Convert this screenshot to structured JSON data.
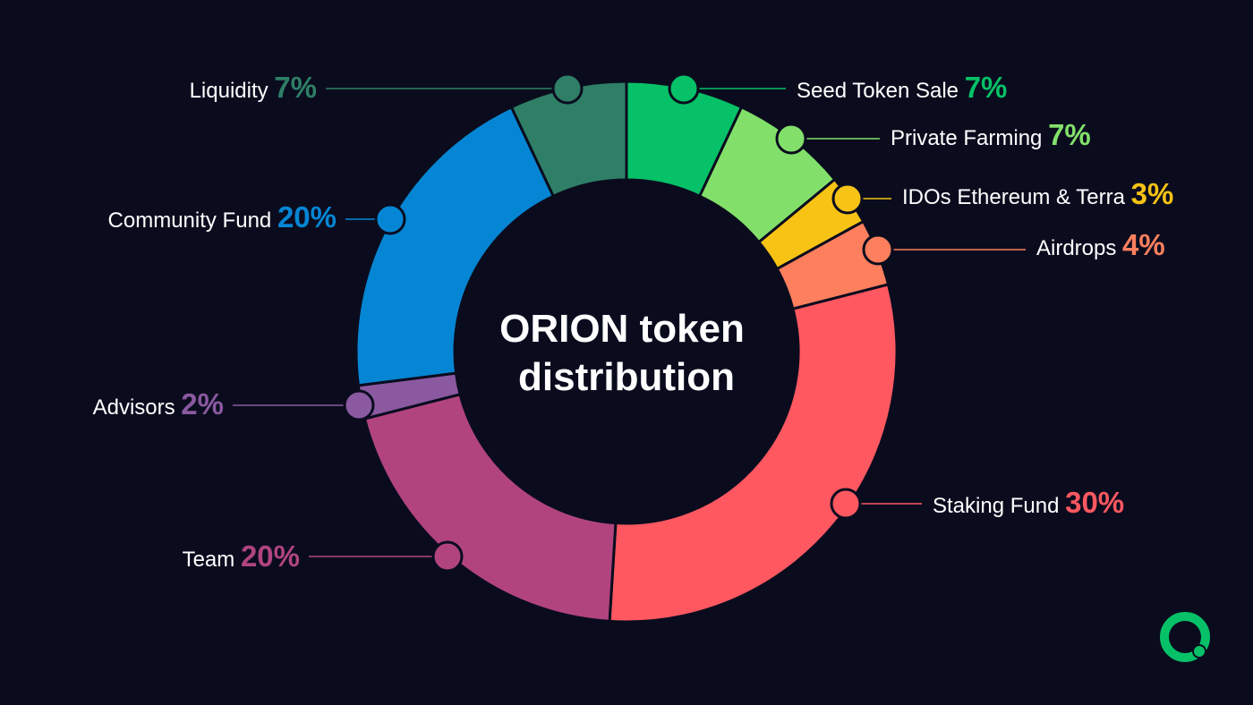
{
  "chart_data": {
    "type": "pie",
    "title": "ORION token distribution",
    "title_lines": [
      "ORION token",
      "distribution"
    ],
    "categories": [
      "Seed Token Sale",
      "Private Farming",
      "IDOs Ethereum & Terra",
      "Airdrops",
      "Staking Fund",
      "Team",
      "Advisors",
      "Community Fund",
      "Liquidity"
    ],
    "values": [
      7,
      7,
      3,
      4,
      30,
      20,
      2,
      20,
      7
    ],
    "value_labels": [
      "7%",
      "7%",
      "3%",
      "4%",
      "30%",
      "20%",
      "2%",
      "20%",
      "7%"
    ],
    "colors": [
      "#06c167",
      "#82e06a",
      "#f7c315",
      "#fd7f5e",
      "#ff5861",
      "#b1447f",
      "#8a59a0",
      "#0586d4",
      "#2e7f66"
    ],
    "label_side": [
      "right",
      "right",
      "right",
      "right",
      "right",
      "left",
      "left",
      "left",
      "left"
    ],
    "style": "donut"
  },
  "theme": {
    "background": "#0a0c1e",
    "divider": "#0a0c1e"
  },
  "logo": {
    "name": "orion-logo-icon",
    "color": "#06c167"
  }
}
